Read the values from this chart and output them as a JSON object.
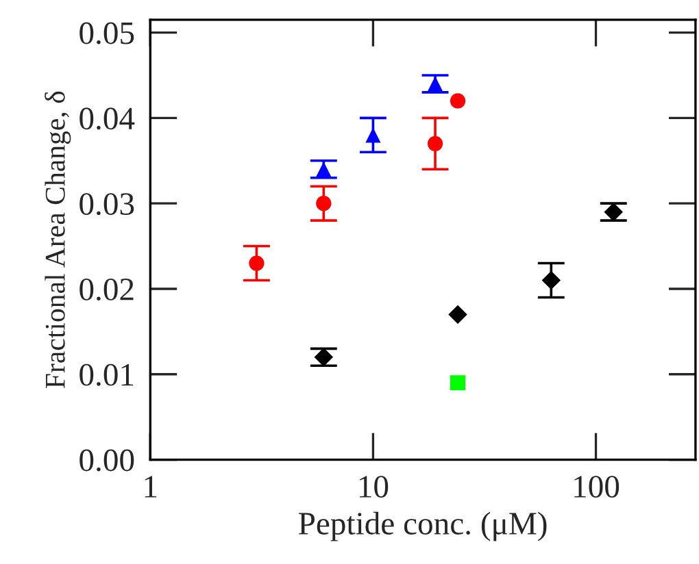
{
  "chart_data": {
    "type": "scatter",
    "xlabel": "Peptide conc. (μM)",
    "ylabel": "Fractional Area Change, δ",
    "log": "x",
    "xlim": [
      1,
      280
    ],
    "xticks": [
      1,
      10,
      100
    ],
    "ylim": [
      0,
      0.0515
    ],
    "yticks": [
      {
        "value": 0,
        "label": "0.00"
      },
      {
        "value": 0.01,
        "label": "0.01"
      },
      {
        "value": 0.02,
        "label": "0.02"
      },
      {
        "value": 0.03,
        "label": "0.03"
      },
      {
        "value": 0.04,
        "label": "0.04"
      },
      {
        "value": 0.05,
        "label": "0.05"
      }
    ],
    "grid": false,
    "legend": false,
    "series": [
      {
        "color": "#ff0000",
        "marker": "circle",
        "x": [
          3,
          6,
          19,
          24
        ],
        "values": [
          0.023,
          0.03,
          0.037,
          0.042
        ],
        "errors": [
          0.002,
          0.002,
          0.003,
          null
        ]
      },
      {
        "color": "#0000ff",
        "marker": "triangle",
        "x": [
          6,
          10,
          19
        ],
        "values": [
          0.034,
          0.038,
          0.044
        ],
        "errors": [
          0.001,
          0.002,
          0.001
        ]
      },
      {
        "color": "#000000",
        "marker": "diamond",
        "x": [
          6,
          24,
          63,
          120
        ],
        "values": [
          0.012,
          0.017,
          0.021,
          0.029
        ],
        "errors": [
          0.001,
          null,
          0.002,
          0.001
        ]
      },
      {
        "color": "#00ff00",
        "marker": "square",
        "x": [
          24
        ],
        "values": [
          0.009
        ]
      }
    ]
  }
}
